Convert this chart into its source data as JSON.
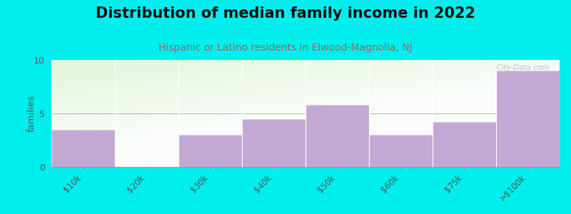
{
  "title": "Distribution of median family income in 2022",
  "subtitle": "Hispanic or Latino residents in Elwood-Magnolia, NJ",
  "categories": [
    "$10k",
    "$20k",
    "$30k",
    "$40k",
    "$50k",
    "$60k",
    "$75k",
    ">$100k"
  ],
  "values": [
    3.5,
    0,
    3.0,
    4.5,
    5.8,
    3.0,
    4.2,
    9.0
  ],
  "bar_color": "#C4A8D4",
  "bar_edge_color": "#E0D0EC",
  "ylabel": "families",
  "ylim": [
    0,
    10
  ],
  "yticks": [
    0,
    5,
    10
  ],
  "background_color": "#00EEEE",
  "title_fontsize": 15,
  "subtitle_fontsize": 10,
  "subtitle_color": "#996666",
  "watermark": "  City-Data.com",
  "title_color": "#111111",
  "tick_color": "#555555",
  "axis_line_color": "#999999"
}
